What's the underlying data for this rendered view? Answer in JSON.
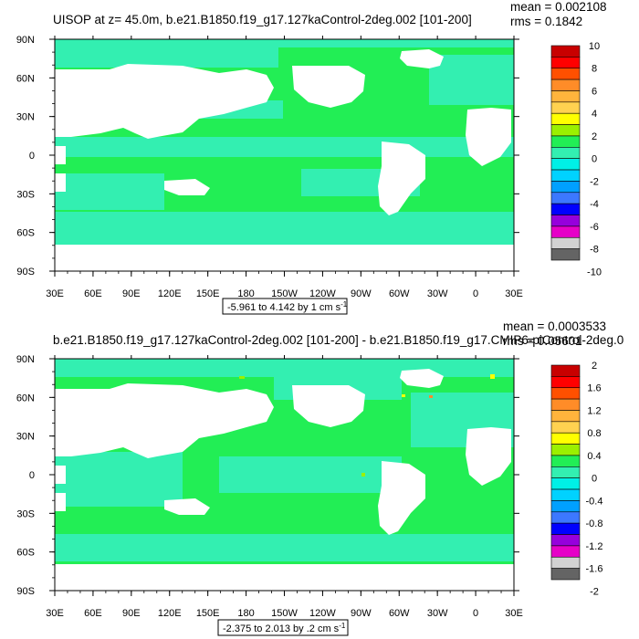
{
  "chart_data": [
    {
      "type": "heatmap",
      "title": "UISOP at z=  45.0m, b.e21.B1850.f19_g17.127kaControl-2deg.002 [101-200]",
      "mean_label": "mean = 0.002108",
      "rms_label": "rms = 0.1842",
      "range_label": "-5.961 to 4.142 by 1 cm s",
      "range_exponent": "-1",
      "x_ticks": [
        "30E",
        "60E",
        "90E",
        "120E",
        "150E",
        "180",
        "150W",
        "120W",
        "90W",
        "60W",
        "30W",
        "0",
        "30E"
      ],
      "y_ticks": [
        "90N",
        "60N",
        "30N",
        "0",
        "30S",
        "60S",
        "90S"
      ],
      "colorbar_labels": [
        "10",
        "8",
        "6",
        "4",
        "2",
        "0",
        "-2",
        "-4",
        "-6",
        "-8",
        "-10"
      ],
      "colorbar_colors": [
        "#c80000",
        "#ff0000",
        "#ff5000",
        "#ff8c28",
        "#ffb43c",
        "#ffd250",
        "#ffff00",
        "#9bf000",
        "#22ee55",
        "#33efb1",
        "#00f0e6",
        "#00d2ff",
        "#00a0ff",
        "#3c78ff",
        "#0000ff",
        "#9600dc",
        "#e600c8",
        "#d2d2d2",
        "#646464"
      ],
      "data_min": -5.961,
      "data_max": 4.142,
      "contour_interval": 1,
      "units": "cm s-1"
    },
    {
      "type": "heatmap",
      "title": "b.e21.B1850.f19_g17.127kaControl-2deg.002 [101-200] - b.e21.B1850.f19_g17.CMIP6-piControl-2deg.0",
      "mean_label": "mean = 0.0003533",
      "rms_label": "rms = 0.05601",
      "range_label": "-2.375 to 2.013 by .2 cm s",
      "range_exponent": "-1",
      "x_ticks": [
        "30E",
        "60E",
        "90E",
        "120E",
        "150E",
        "180",
        "150W",
        "120W",
        "90W",
        "60W",
        "30W",
        "0",
        "30E"
      ],
      "y_ticks": [
        "90N",
        "60N",
        "30N",
        "0",
        "30S",
        "60S",
        "90S"
      ],
      "colorbar_labels": [
        "2",
        "1.6",
        "1.2",
        "0.8",
        "0.4",
        "0",
        "-0.4",
        "-0.8",
        "-1.2",
        "-1.6",
        "-2"
      ],
      "colorbar_colors": [
        "#c80000",
        "#ff0000",
        "#ff5000",
        "#ff8c28",
        "#ffb43c",
        "#ffd250",
        "#ffff00",
        "#9bf000",
        "#22ee55",
        "#33efb1",
        "#00f0e6",
        "#00d2ff",
        "#00a0ff",
        "#3c78ff",
        "#0000ff",
        "#9600dc",
        "#e600c8",
        "#d2d2d2",
        "#646464"
      ],
      "data_min": -2.375,
      "data_max": 2.013,
      "contour_interval": 0.2,
      "units": "cm s-1"
    }
  ],
  "colors": {
    "ocean_primary": "#22ee55",
    "ocean_secondary": "#33efb1",
    "land": "#ffffff",
    "frame": "#000000"
  }
}
